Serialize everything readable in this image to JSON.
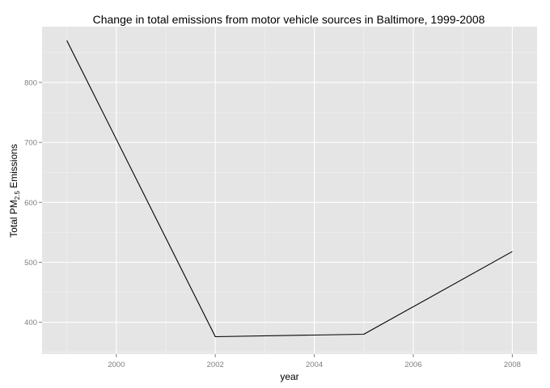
{
  "chart_data": {
    "type": "line",
    "title": "Change in total emissions from motor vehicle sources in Baltimore, 1999-2008",
    "xlabel": "year",
    "ylabel": {
      "prefix": "Total PM",
      "subscript": "2.5",
      "suffix": " Emissions"
    },
    "xlim": [
      1998.5,
      2008.5
    ],
    "ylim": [
      347,
      893
    ],
    "x_ticks": [
      2000,
      2002,
      2004,
      2006,
      2008
    ],
    "y_ticks": [
      400,
      500,
      600,
      700,
      800
    ],
    "grid": true,
    "series": [
      {
        "color": "#000000",
        "x": [
          1999,
          2002,
          2005,
          2008
        ],
        "y": [
          870,
          376,
          380,
          518
        ]
      }
    ]
  }
}
